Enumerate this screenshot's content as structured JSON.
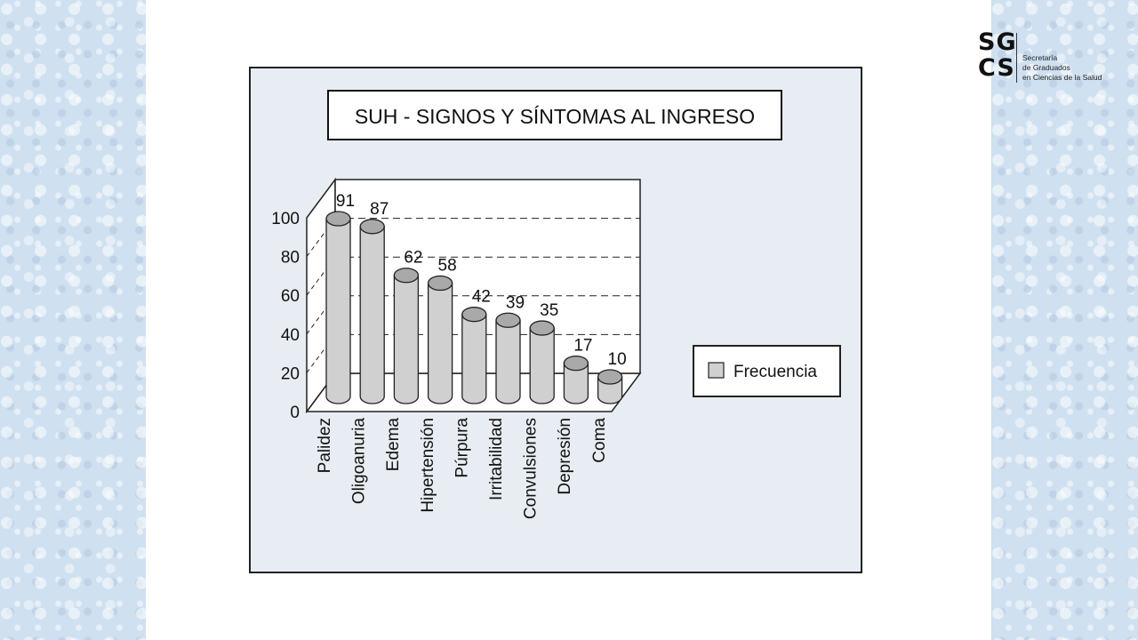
{
  "logo": {
    "line1": "SG",
    "line2": "CS",
    "text1": "Secretaría",
    "text2": "de Graduados",
    "text3": "en Ciencias de la Salud"
  },
  "colors": {
    "panel_bg": "#e7edf2",
    "bar_fill": "#d0d0d0",
    "bar_top": "#a9a9a9",
    "side_bg": "#cfe0f0"
  },
  "chart_data": {
    "type": "bar",
    "style": "3d-cylinder",
    "title": "SUH - SIGNOS Y SÍNTOMAS AL INGRESO",
    "categories": [
      "Palidez",
      "Oligoanuria",
      "Edema",
      "Hipertensión",
      "Púrpura",
      "Irritabilidad",
      "Convulsiones",
      "Depresión",
      "Coma"
    ],
    "series": [
      {
        "name": "Frecuencia",
        "values": [
          91,
          87,
          62,
          58,
          42,
          39,
          35,
          17,
          10
        ]
      }
    ],
    "yticks": [
      0,
      20,
      40,
      60,
      80,
      100
    ],
    "ylim": [
      0,
      100
    ],
    "grid": true,
    "legend": "right"
  }
}
